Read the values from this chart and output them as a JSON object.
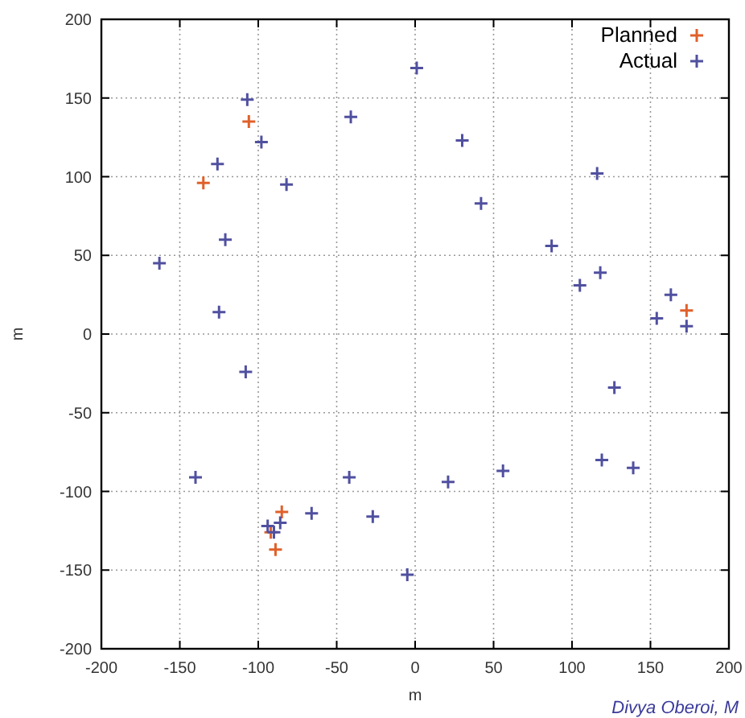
{
  "chart_data": {
    "type": "scatter",
    "xlabel": "m",
    "ylabel": "m",
    "xlim": [
      -200,
      200
    ],
    "ylim": [
      -200,
      200
    ],
    "xticks": [
      -200,
      -150,
      -100,
      -50,
      0,
      50,
      100,
      150,
      200
    ],
    "yticks": [
      -200,
      -150,
      -100,
      -50,
      0,
      50,
      100,
      150,
      200
    ],
    "grid": true,
    "legend": "top right",
    "marker": "cross",
    "annotations": [
      "Divya Oberoi, M"
    ],
    "series": [
      {
        "name": "Planned",
        "color": "#e0602a",
        "x": [
          -106,
          -135,
          173,
          -85,
          -89,
          -92
        ],
        "values": [
          135,
          96,
          15,
          -113,
          -137,
          -126
        ]
      },
      {
        "name": "Actual",
        "color": "#5050a0",
        "x": [
          -107,
          -98,
          -126,
          -82,
          -121,
          -163,
          -125,
          -108,
          -41,
          1,
          30,
          42,
          116,
          87,
          105,
          118,
          154,
          163,
          173,
          127,
          119,
          139,
          56,
          21,
          -27,
          -5,
          -42,
          -66,
          -140,
          -94,
          -90,
          -86
        ],
        "values": [
          149,
          122,
          108,
          95,
          60,
          45,
          14,
          -24,
          138,
          169,
          123,
          83,
          102,
          56,
          31,
          39,
          10,
          25,
          5,
          -34,
          -80,
          -85,
          -87,
          -94,
          -116,
          -153,
          -91,
          -114,
          -91,
          -122,
          -126,
          -120
        ]
      }
    ]
  }
}
